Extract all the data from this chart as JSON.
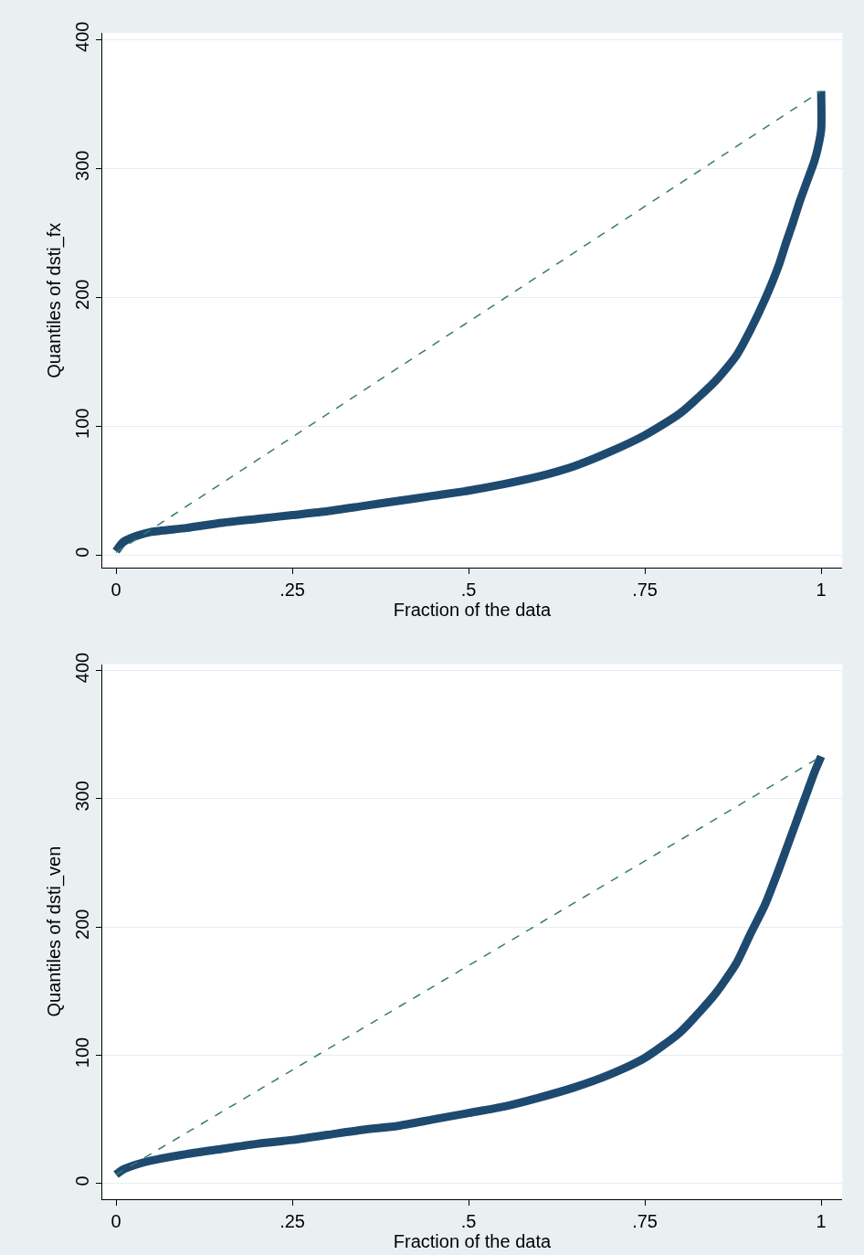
{
  "chart_data": [
    {
      "type": "line",
      "xlabel": "Fraction of the data",
      "ylabel": "Quantiles of dsti_fx",
      "xlim": [
        -0.02,
        1.03
      ],
      "ylim": [
        -10,
        405
      ],
      "xticks": [
        0,
        {
          "value": 0.25,
          "label": ".25"
        },
        {
          "value": 0.5,
          "label": ".5"
        },
        {
          "value": 0.75,
          "label": ".75"
        },
        1
      ],
      "yticks": [
        0,
        100,
        200,
        300,
        400
      ],
      "grid": "y",
      "series": [
        {
          "color": "#1f4a70",
          "x": [
            0,
            0.01,
            0.03,
            0.05,
            0.1,
            0.15,
            0.2,
            0.25,
            0.3,
            0.35,
            0.4,
            0.45,
            0.5,
            0.55,
            0.6,
            0.65,
            0.7,
            0.75,
            0.8,
            0.85,
            0.88,
            0.9,
            0.92,
            0.94,
            0.95,
            0.96,
            0.97,
            0.98,
            0.99,
            0.995,
            1,
            1
          ],
          "values": [
            3,
            10,
            15,
            18,
            21,
            25,
            28,
            31,
            34,
            38,
            42,
            46,
            50,
            55,
            61,
            69,
            80,
            93,
            110,
            135,
            155,
            175,
            198,
            225,
            242,
            258,
            275,
            290,
            305,
            315,
            330,
            360
          ]
        },
        {
          "line_style": "dashed",
          "color": "#3a7a6e",
          "x": [
            0,
            1
          ],
          "values": [
            2,
            360
          ]
        }
      ]
    },
    {
      "type": "line",
      "xlabel": "Fraction of the data",
      "ylabel": "Quantiles of dsti_ven",
      "xlim": [
        -0.02,
        1.03
      ],
      "ylim": [
        -12,
        405
      ],
      "xticks": [
        0,
        {
          "value": 0.25,
          "label": ".25"
        },
        {
          "value": 0.5,
          "label": ".5"
        },
        {
          "value": 0.75,
          "label": ".75"
        },
        1
      ],
      "yticks": [
        0,
        100,
        200,
        300,
        400
      ],
      "grid": "y",
      "series": [
        {
          "color": "#1f4a70",
          "x": [
            0,
            0.01,
            0.03,
            0.05,
            0.1,
            0.15,
            0.2,
            0.25,
            0.3,
            0.35,
            0.4,
            0.45,
            0.5,
            0.55,
            0.6,
            0.65,
            0.7,
            0.75,
            0.8,
            0.85,
            0.88,
            0.9,
            0.92,
            0.94,
            0.95,
            0.96,
            0.97,
            0.98,
            0.99,
            1
          ],
          "values": [
            7,
            11,
            15,
            18,
            23,
            27,
            31,
            34,
            38,
            42,
            45,
            50,
            55,
            60,
            67,
            75,
            85,
            98,
            118,
            148,
            172,
            195,
            217,
            245,
            260,
            275,
            290,
            305,
            320,
            333
          ]
        },
        {
          "line_style": "dashed",
          "color": "#3a7a6e",
          "x": [
            0,
            1
          ],
          "values": [
            7,
            333
          ]
        }
      ]
    }
  ]
}
